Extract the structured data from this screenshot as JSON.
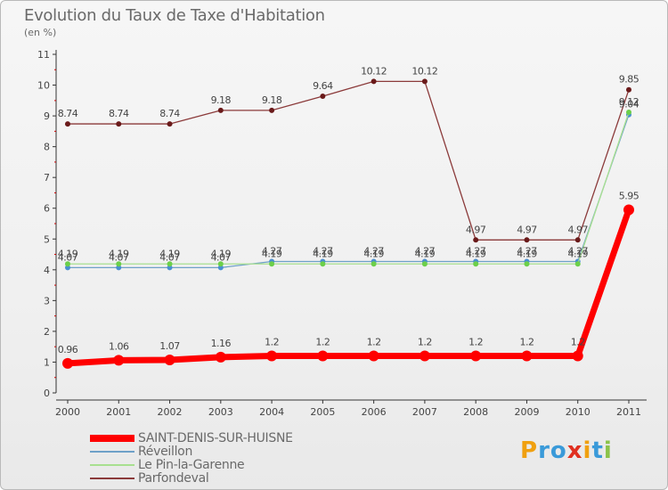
{
  "header": {
    "title": "Evolution du Taux de Taxe d'Habitation",
    "subtitle": "(en %)"
  },
  "logo": {
    "text": "Proxiti",
    "letter_colors": [
      "#f0a010",
      "#3a9ad9",
      "#3a9ad9",
      "#e03020",
      "#f0a010",
      "#3a9ad9",
      "#8bc34a"
    ]
  },
  "chart_data": {
    "type": "line",
    "title": "Evolution du Taux de Taxe d'Habitation",
    "subtitle": "(en %)",
    "xlabel": "",
    "ylabel": "",
    "categories": [
      "2000",
      "2001",
      "2002",
      "2003",
      "2004",
      "2005",
      "2006",
      "2007",
      "2008",
      "2009",
      "2010",
      "2011"
    ],
    "ylim": [
      0,
      11
    ],
    "yticks": [
      "0",
      "1",
      "2",
      "3",
      "4",
      "5",
      "6",
      "7",
      "8",
      "9",
      "10",
      "11"
    ],
    "grid": false,
    "legend_position": "bottom-left",
    "series": [
      {
        "name": "SAINT-DENIS-SUR-HUISNE",
        "color": "#ff0000",
        "highlight": true,
        "values": [
          0.96,
          1.06,
          1.07,
          1.16,
          1.2,
          1.2,
          1.2,
          1.2,
          1.2,
          1.2,
          1.2,
          5.95
        ],
        "labels": [
          "0.96",
          "1.06",
          "1.07",
          "1.16",
          "1.2",
          "1.2",
          "1.2",
          "1.2",
          "1.2",
          "1.2",
          "1.2",
          "5.95"
        ]
      },
      {
        "name": "Réveillon",
        "color": "#6ea0c8",
        "marker": "#4a90d0",
        "highlight": false,
        "values": [
          4.07,
          4.07,
          4.07,
          4.07,
          4.27,
          4.27,
          4.27,
          4.27,
          4.27,
          4.27,
          4.27,
          9.04
        ],
        "labels": [
          "4.07",
          "4.07",
          "4.07",
          "4.07",
          "4.27",
          "4.27",
          "4.27",
          "4.27",
          "4.27",
          "4.27",
          "4.27",
          "9.04"
        ]
      },
      {
        "name": "Le Pin-la-Garenne",
        "color": "#a8e090",
        "marker": "#6ccf4a",
        "highlight": false,
        "values": [
          4.19,
          4.19,
          4.19,
          4.19,
          4.19,
          4.19,
          4.19,
          4.19,
          4.19,
          4.19,
          4.19,
          9.12
        ],
        "labels": [
          "4.19",
          "4.19",
          "4.19",
          "4.19",
          "4.19",
          "4.19",
          "4.19",
          "4.19",
          "4.19",
          "4.19",
          "4.19",
          "9.12"
        ]
      },
      {
        "name": "Parfondeval",
        "color": "#8b3a3a",
        "marker": "#6a1a1a",
        "highlight": false,
        "values": [
          8.74,
          8.74,
          8.74,
          9.18,
          9.18,
          9.64,
          10.12,
          10.12,
          4.97,
          4.97,
          4.97,
          9.85
        ],
        "labels": [
          "8.74",
          "8.74",
          "8.74",
          "9.18",
          "9.18",
          "9.64",
          "10.12",
          "10.12",
          "4.97",
          "4.97",
          "4.97",
          "9.85"
        ]
      }
    ]
  }
}
